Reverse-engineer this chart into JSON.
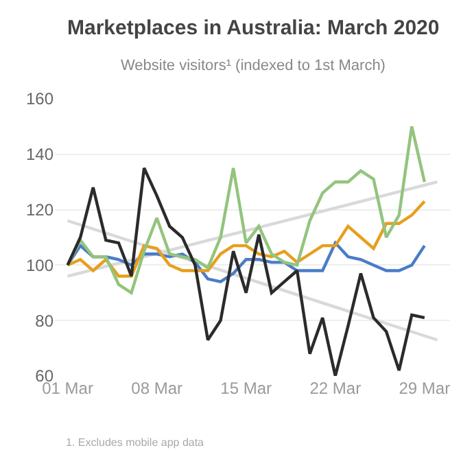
{
  "chart_data": {
    "type": "line",
    "title": "Marketplaces in Australia: March 2020",
    "subtitle": "Website visitors¹ (indexed to 1st March)",
    "x": [
      "--03-01",
      "--03-02",
      "--03-03",
      "--03-04",
      "--03-05",
      "--03-06",
      "--03-07",
      "--03-08",
      "--03-09",
      "--03-10",
      "--03-11",
      "--03-12",
      "--03-13",
      "--03-14",
      "--03-15",
      "--03-16",
      "--03-17",
      "--03-18",
      "--03-19",
      "--03-20",
      "--03-21",
      "--03-22",
      "--03-23",
      "--03-24",
      "--03-25",
      "--03-26",
      "--03-27",
      "--03-28",
      "--03-29"
    ],
    "series": [
      {
        "color": "#d9d9d9",
        "x": [
          "--03-01",
          "--03-30"
        ],
        "values": [
          116,
          73
        ]
      },
      {
        "color": "#d9d9d9",
        "x": [
          "--03-01",
          "--03-30"
        ],
        "values": [
          96,
          130
        ]
      },
      {
        "color": "#4a7cc8",
        "values": [
          100,
          107,
          103,
          103,
          102,
          100,
          104,
          104,
          103,
          104,
          101,
          95,
          94,
          97,
          102,
          102,
          101,
          101,
          98,
          98,
          98,
          108,
          103,
          102,
          100,
          98,
          98,
          100,
          107
        ]
      },
      {
        "color": "#e69f1e",
        "values": [
          100,
          102,
          98,
          102,
          96,
          96,
          107,
          106,
          100,
          98,
          98,
          98,
          104,
          107,
          107,
          104,
          103,
          105,
          101,
          104,
          107,
          107,
          114,
          110,
          106,
          115,
          115,
          118,
          123
        ]
      },
      {
        "color": "#93c47d",
        "values": [
          100,
          109,
          103,
          103,
          93,
          90,
          105,
          117,
          104,
          103,
          102,
          99,
          110,
          135,
          108,
          114,
          104,
          101,
          100,
          116,
          126,
          130,
          130,
          134,
          131,
          110,
          118,
          150,
          130
        ]
      },
      {
        "color": "#2b2b2b",
        "values": [
          100,
          110,
          128,
          109,
          108,
          96,
          135,
          125,
          114,
          110,
          100,
          73,
          80,
          105,
          90,
          111,
          90,
          94,
          98,
          68,
          81,
          60,
          78,
          97,
          81,
          76,
          62,
          82,
          81
        ]
      }
    ],
    "xlim": [
      "--02-29",
      "--03-31"
    ],
    "xticks": [
      {
        "value": "--03-01",
        "label": "01 Mar"
      },
      {
        "value": "--03-08",
        "label": "08 Mar"
      },
      {
        "value": "--03-15",
        "label": "15 Mar"
      },
      {
        "value": "--03-22",
        "label": "22 Mar"
      },
      {
        "value": "--03-29",
        "label": "29 Mar"
      }
    ],
    "ylim": [
      60,
      160
    ],
    "yticks": [
      60,
      80,
      100,
      120,
      140,
      160
    ],
    "grid": "y",
    "marker": "none",
    "line_style": "solid",
    "annotations": [
      "1. Excludes mobile app data"
    ]
  }
}
